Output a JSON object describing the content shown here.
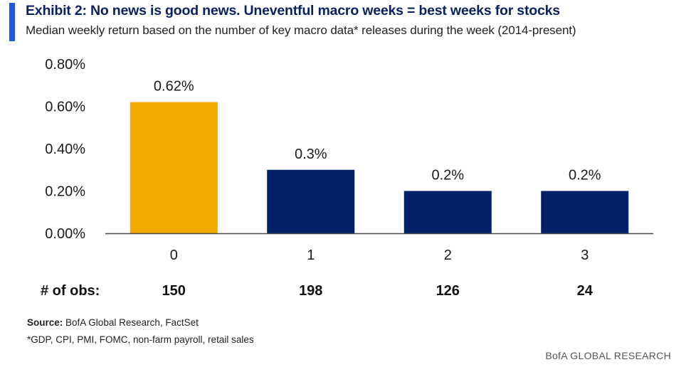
{
  "header": {
    "title": "Exhibit 2: No news is good news. Uneventful macro weeks = best weeks for stocks",
    "subtitle": "Median weekly return based on the number of key macro data* releases during the week (2014-present)"
  },
  "chart_data": {
    "type": "bar",
    "categories": [
      "0",
      "1",
      "2",
      "3"
    ],
    "values": [
      0.62,
      0.3,
      0.2,
      0.2
    ],
    "value_labels": [
      "0.62%",
      "0.3%",
      "0.2%",
      "0.2%"
    ],
    "bar_colors": [
      "#F2A900",
      "#012169",
      "#012169",
      "#012169"
    ],
    "ylim": [
      0,
      0.8
    ],
    "yticks": [
      0,
      0.2,
      0.4,
      0.6,
      0.8
    ],
    "ytick_labels": [
      "0.00%",
      "0.20%",
      "0.40%",
      "0.60%",
      "0.80%"
    ],
    "grid": false,
    "legend": "none"
  },
  "observations": {
    "label": "# of obs:",
    "values": [
      "150",
      "198",
      "126",
      "24"
    ]
  },
  "footer": {
    "source_label": "Source:",
    "source_text": "BofA Global Research, FactSet",
    "footnote": "*GDP, CPI, PMI, FOMC, non-farm payroll, retail sales",
    "brand": "BofA GLOBAL RESEARCH"
  },
  "colors": {
    "accent": "#1E5AD7",
    "title": "#0B1F63",
    "highlight_bar": "#F2A900",
    "bar": "#012169"
  }
}
